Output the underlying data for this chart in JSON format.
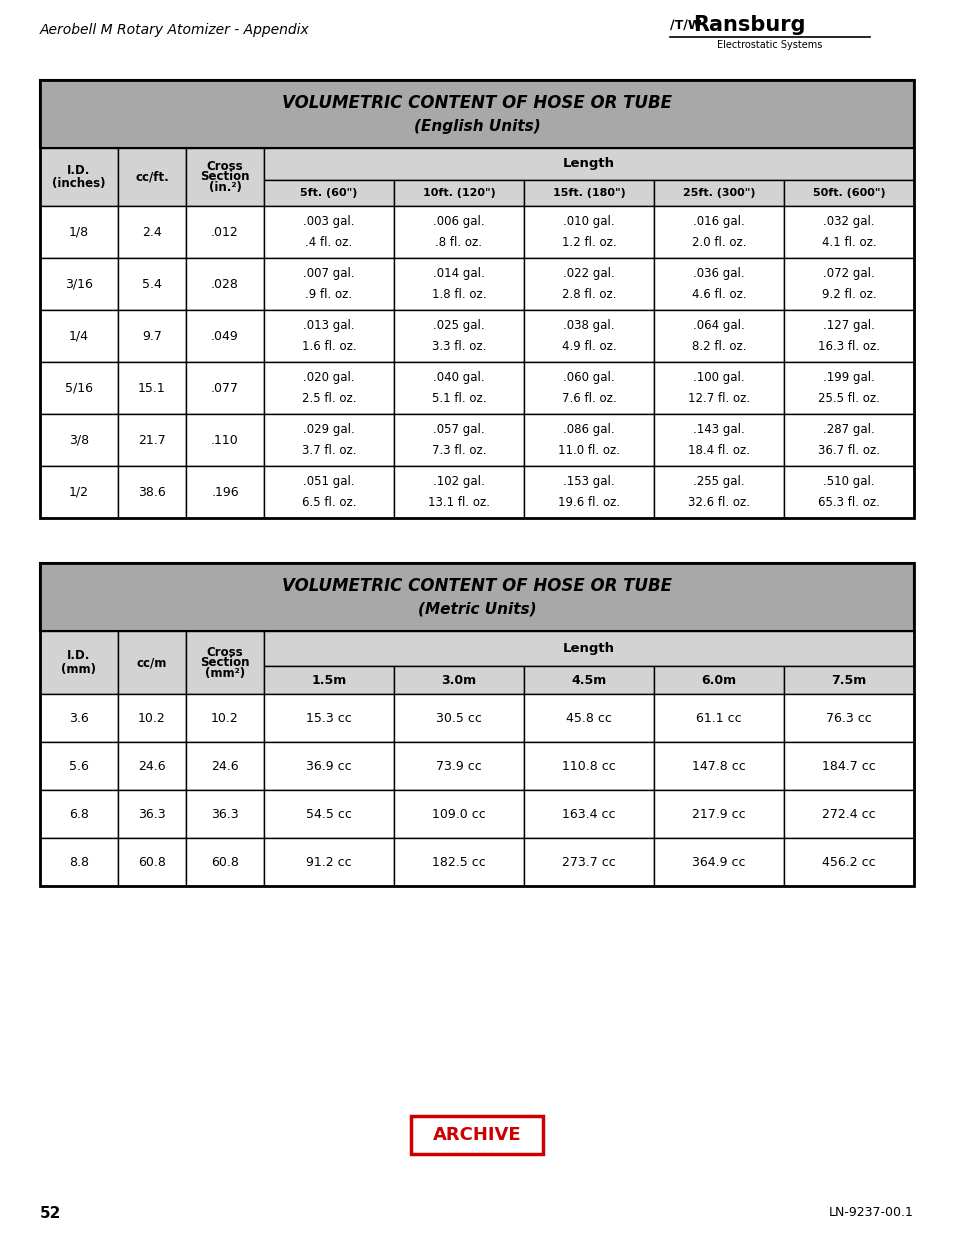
{
  "page_title": "Aerobell M Rotary Atomizer - Appendix",
  "page_num": "52",
  "doc_num": "LN-9237-00.1",
  "archive_text": "ARCHIVE",
  "table1_title1": "VOLUMETRIC CONTENT OF HOSE OR TUBE",
  "table1_title2": "(English Units)",
  "table1_length_cols": [
    "5ft. (60\")",
    "10ft. (120\")",
    "15ft. (180\")",
    "25ft. (300\")",
    "50ft. (600\")"
  ],
  "table1_rows": [
    [
      "1/8",
      "2.4",
      ".012",
      ".003 gal.\n.4 fl. oz.",
      ".006 gal.\n.8 fl. oz.",
      ".010 gal.\n1.2 fl. oz.",
      ".016 gal.\n2.0 fl. oz.",
      ".032 gal.\n4.1 fl. oz."
    ],
    [
      "3/16",
      "5.4",
      ".028",
      ".007 gal.\n.9 fl. oz.",
      ".014 gal.\n1.8 fl. oz.",
      ".022 gal.\n2.8 fl. oz.",
      ".036 gal.\n4.6 fl. oz.",
      ".072 gal.\n9.2 fl. oz."
    ],
    [
      "1/4",
      "9.7",
      ".049",
      ".013 gal.\n1.6 fl. oz.",
      ".025 gal.\n3.3 fl. oz.",
      ".038 gal.\n4.9 fl. oz.",
      ".064 gal.\n8.2 fl. oz.",
      ".127 gal.\n16.3 fl. oz."
    ],
    [
      "5/16",
      "15.1",
      ".077",
      ".020 gal.\n2.5 fl. oz.",
      ".040 gal.\n5.1 fl. oz.",
      ".060 gal.\n7.6 fl. oz.",
      ".100 gal.\n12.7 fl. oz.",
      ".199 gal.\n25.5 fl. oz."
    ],
    [
      "3/8",
      "21.7",
      ".110",
      ".029 gal.\n3.7 fl. oz.",
      ".057 gal.\n7.3 fl. oz.",
      ".086 gal.\n11.0 fl. oz.",
      ".143 gal.\n18.4 fl. oz.",
      ".287 gal.\n36.7 fl. oz."
    ],
    [
      "1/2",
      "38.6",
      ".196",
      ".051 gal.\n6.5 fl. oz.",
      ".102 gal.\n13.1 fl. oz.",
      ".153 gal.\n19.6 fl. oz.",
      ".255 gal.\n32.6 fl. oz.",
      ".510 gal.\n65.3 fl. oz."
    ]
  ],
  "table2_title1": "VOLUMETRIC CONTENT OF HOSE OR TUBE",
  "table2_title2": "(Metric Units)",
  "table2_length_cols": [
    "1.5m",
    "3.0m",
    "4.5m",
    "6.0m",
    "7.5m"
  ],
  "table2_rows": [
    [
      "3.6",
      "10.2",
      "10.2",
      "15.3 cc",
      "30.5 cc",
      "45.8 cc",
      "61.1 cc",
      "76.3 cc"
    ],
    [
      "5.6",
      "24.6",
      "24.6",
      "36.9 cc",
      "73.9 cc",
      "110.8 cc",
      "147.8 cc",
      "184.7 cc"
    ],
    [
      "6.8",
      "36.3",
      "36.3",
      "54.5 cc",
      "109.0 cc",
      "163.4 cc",
      "217.9 cc",
      "272.4 cc"
    ],
    [
      "8.8",
      "60.8",
      "60.8",
      "91.2 cc",
      "182.5 cc",
      "273.7 cc",
      "364.9 cc",
      "456.2 cc"
    ]
  ],
  "title_bg": "#a8a8a8",
  "subheader_bg": "#d3d3d3",
  "border_color": "#000000",
  "archive_color": "#cc0000"
}
